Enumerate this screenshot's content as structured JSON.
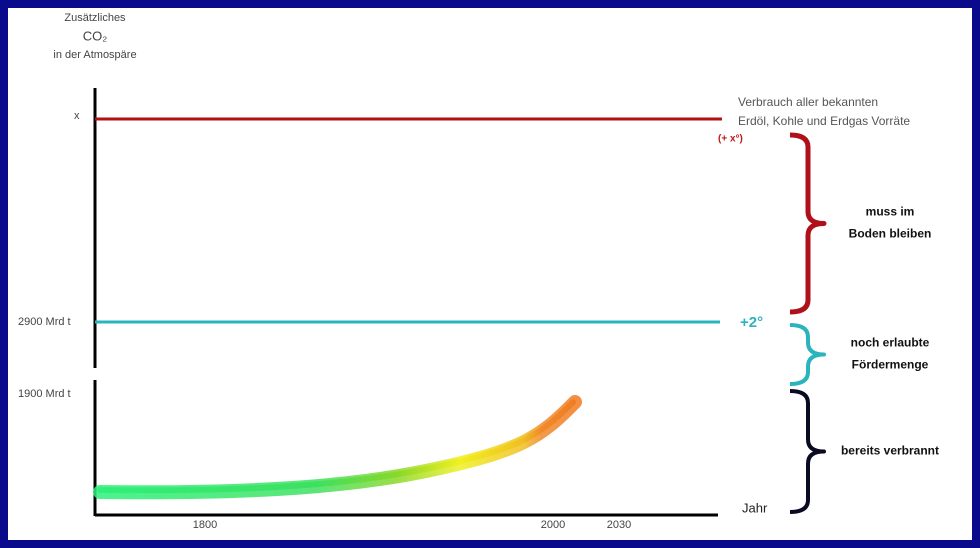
{
  "y_axis_label": [
    "Zusätzliches",
    "CO₂",
    "in der Atmospäre"
  ],
  "y_labels": [
    "x",
    "2900 Mrd t",
    "1900 Mrd t"
  ],
  "x_labels": [
    "1800",
    "2000",
    "2030"
  ],
  "x_axis_label": "Jahr",
  "top_line_label": [
    "Verbrauch aller bekannten",
    "Erdöl, Kohle und Erdgas Vorräte"
  ],
  "top_line_marker": "(+ x°)",
  "middle_line_marker": "+2°",
  "brackets": [
    {
      "label": [
        "muss im",
        "Boden bleiben"
      ]
    },
    {
      "label": [
        "noch erlaubte",
        "Fördermenge"
      ]
    },
    {
      "label": [
        "bereits verbrannt"
      ]
    }
  ]
}
